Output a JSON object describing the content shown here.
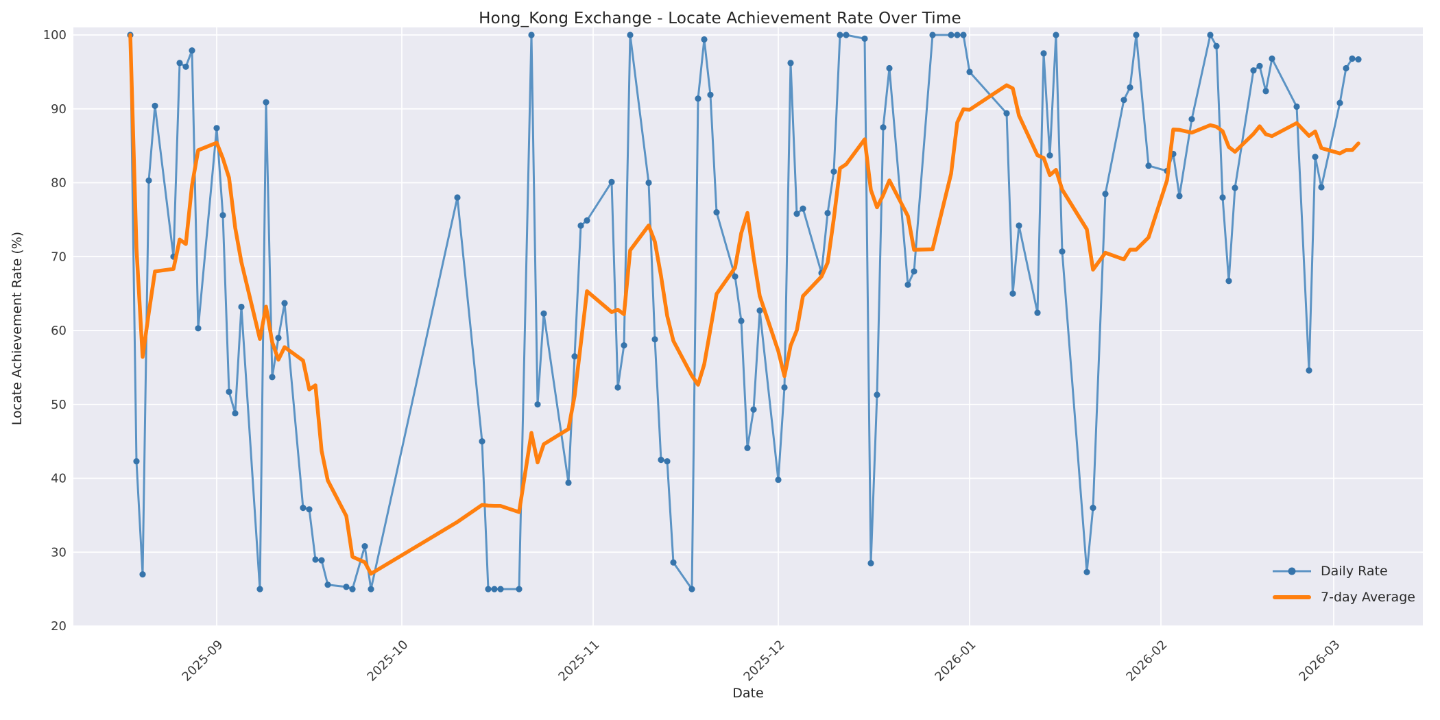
{
  "title": "Hong_Kong Exchange - Locate Achievement Rate Over Time",
  "axes": {
    "xlabel": "Date",
    "ylabel": "Locate Achievement Rate (%)",
    "yticks": [
      20,
      30,
      40,
      50,
      60,
      70,
      80,
      90,
      100
    ],
    "xticks": [
      "2025-09",
      "2025-10",
      "2025-11",
      "2025-12",
      "2026-01",
      "2026-02",
      "2026-03"
    ],
    "xtick_dates": [
      "2025-09-01",
      "2025-10-01",
      "2025-11-01",
      "2025-12-01",
      "2026-01-01",
      "2026-02-01",
      "2026-03-01"
    ],
    "grid": true
  },
  "legend": {
    "position": "lower right",
    "entries": [
      {
        "label": "Daily Rate",
        "marker": "line-dot"
      },
      {
        "label": "7-day Average",
        "marker": "line"
      }
    ]
  },
  "colors": {
    "figure_bg": "#ffffff",
    "axes_bg": "#eaeaf2",
    "grid": "#ffffff",
    "daily_line": "#5b93c4",
    "daily_marker": "#3674ab",
    "avg_line": "#ff7f0e",
    "tick_text": "#3b3b3b",
    "label_text": "#262626"
  },
  "chart_data": {
    "type": "line",
    "title": "Hong_Kong Exchange - Locate Achievement Rate Over Time",
    "xlabel": "Date",
    "ylabel": "Locate Achievement Rate (%)",
    "ylim": [
      20,
      100
    ],
    "x_range": [
      "2025-08-18",
      "2026-03-05"
    ],
    "legend_position": "lower right",
    "x": [
      "2025-08-18",
      "2025-08-19",
      "2025-08-20",
      "2025-08-21",
      "2025-08-22",
      "2025-08-25",
      "2025-08-26",
      "2025-08-27",
      "2025-08-28",
      "2025-08-29",
      "2025-09-01",
      "2025-09-02",
      "2025-09-03",
      "2025-09-04",
      "2025-09-05",
      "2025-09-08",
      "2025-09-09",
      "2025-09-10",
      "2025-09-11",
      "2025-09-12",
      "2025-09-15",
      "2025-09-16",
      "2025-09-17",
      "2025-09-18",
      "2025-09-19",
      "2025-09-22",
      "2025-09-23",
      "2025-09-25",
      "2025-09-26",
      "2025-10-10",
      "2025-10-14",
      "2025-10-15",
      "2025-10-16",
      "2025-10-17",
      "2025-10-20",
      "2025-10-22",
      "2025-10-23",
      "2025-10-24",
      "2025-10-28",
      "2025-10-29",
      "2025-10-30",
      "2025-10-31",
      "2025-11-04",
      "2025-11-05",
      "2025-11-06",
      "2025-11-07",
      "2025-11-10",
      "2025-11-11",
      "2025-11-12",
      "2025-11-13",
      "2025-11-14",
      "2025-11-17",
      "2025-11-18",
      "2025-11-19",
      "2025-11-20",
      "2025-11-21",
      "2025-11-24",
      "2025-11-25",
      "2025-11-26",
      "2025-11-27",
      "2025-11-28",
      "2025-12-01",
      "2025-12-02",
      "2025-12-03",
      "2025-12-04",
      "2025-12-05",
      "2025-12-08",
      "2025-12-09",
      "2025-12-10",
      "2025-12-11",
      "2025-12-12",
      "2025-12-15",
      "2025-12-16",
      "2025-12-17",
      "2025-12-18",
      "2025-12-19",
      "2025-12-22",
      "2025-12-23",
      "2025-12-26",
      "2025-12-29",
      "2025-12-30",
      "2025-12-31",
      "2026-01-01",
      "2026-01-07",
      "2026-01-08",
      "2026-01-09",
      "2026-01-12",
      "2026-01-13",
      "2026-01-14",
      "2026-01-15",
      "2026-01-16",
      "2026-01-20",
      "2026-01-21",
      "2026-01-23",
      "2026-01-26",
      "2026-01-27",
      "2026-01-28",
      "2026-01-30",
      "2026-02-02",
      "2026-02-03",
      "2026-02-04",
      "2026-02-06",
      "2026-02-09",
      "2026-02-10",
      "2026-02-11",
      "2026-02-12",
      "2026-02-13",
      "2026-02-16",
      "2026-02-17",
      "2026-02-18",
      "2026-02-19",
      "2026-02-23",
      "2026-02-25",
      "2026-02-26",
      "2026-02-27",
      "2026-03-02",
      "2026-03-03",
      "2026-03-04",
      "2026-03-05"
    ],
    "series": [
      {
        "name": "Daily Rate",
        "values": [
          100.0,
          42.3,
          27.0,
          80.3,
          90.4,
          70.0,
          96.2,
          95.7,
          97.9,
          60.3,
          87.4,
          75.6,
          51.7,
          48.8,
          63.2,
          25.0,
          90.9,
          53.7,
          59.0,
          63.7,
          36.0,
          35.8,
          29.0,
          28.9,
          25.6,
          25.3,
          25.0,
          30.8,
          25.0,
          78.0,
          45.0,
          25.0,
          25.0,
          25.0,
          25.0,
          100.0,
          50.0,
          62.3,
          39.4,
          56.5,
          74.2,
          74.9,
          80.1,
          52.3,
          58.0,
          100.0,
          80.0,
          58.8,
          42.5,
          42.3,
          28.6,
          25.0,
          91.4,
          99.4,
          91.9,
          76.0,
          67.3,
          61.3,
          44.1,
          49.3,
          62.7,
          39.8,
          52.3,
          96.2,
          75.8,
          76.5,
          67.8,
          75.9,
          81.5,
          100.0,
          100.0,
          99.5,
          28.5,
          51.3,
          87.5,
          95.5,
          66.2,
          68.0,
          100.0,
          100.0,
          100.0,
          100.0,
          95.0,
          89.4,
          65.0,
          74.2,
          62.4,
          97.5,
          83.7,
          100.0,
          70.7,
          27.3,
          36.0,
          78.5,
          91.2,
          92.9,
          100.0,
          82.3,
          81.6,
          83.9,
          78.2,
          88.6,
          100.0,
          98.5,
          78.0,
          66.7,
          79.3,
          95.2,
          95.8,
          92.4,
          96.8,
          90.3,
          54.6,
          83.5,
          79.4,
          90.8,
          95.5,
          96.8,
          96.7
        ]
      },
      {
        "name": "7-day Average",
        "derived_from": "Daily Rate",
        "transform": "rolling_mean",
        "window": 7,
        "min_periods": 1
      }
    ]
  }
}
